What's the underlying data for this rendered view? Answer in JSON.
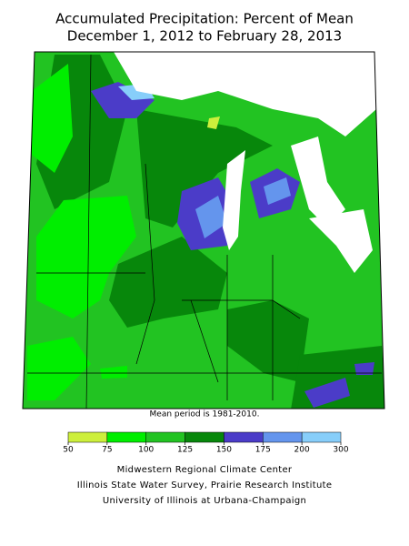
{
  "header": {
    "title_line1": "Accumulated Precipitation: Percent of Mean",
    "title_line2": "December 1, 2012 to February 28, 2013"
  },
  "map": {
    "note": "Mean period is 1981-2010."
  },
  "legend": {
    "ticks": [
      50,
      75,
      100,
      125,
      150,
      175,
      200,
      300
    ],
    "colors": [
      "#cdef3c",
      "#00ee00",
      "#22c322",
      "#07870b",
      "#4b3cc8",
      "#6495ed",
      "#87cefa"
    ]
  },
  "credits": [
    "Midwestern Regional Climate Center",
    "Illinois State Water Survey, Prairie Research Institute",
    "University of Illinois at Urbana-Champaign"
  ]
}
